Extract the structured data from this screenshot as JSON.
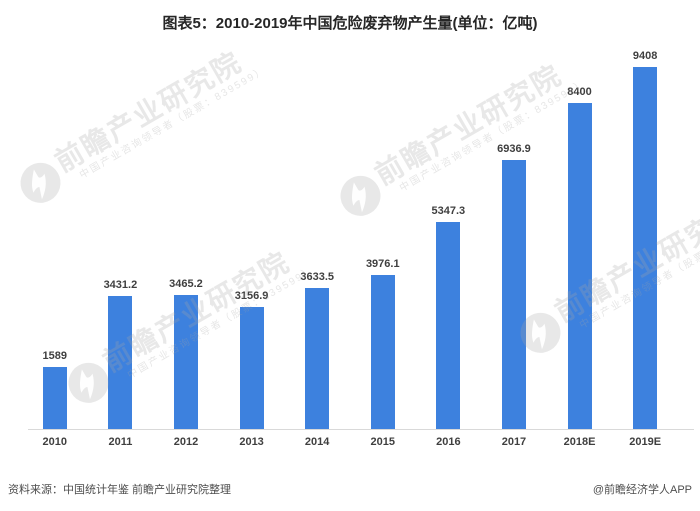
{
  "title": "图表5：2010-2019年中国危险废弃物产生量(单位：亿吨)",
  "chart_data": {
    "type": "bar",
    "title": "图表5：2010-2019年中国危险废弃物产生量(单位：亿吨)",
    "unit": "亿吨",
    "categories": [
      "2010",
      "2011",
      "2012",
      "2013",
      "2014",
      "2015",
      "2016",
      "2017",
      "2018E",
      "2019E"
    ],
    "values": [
      1589,
      3431.2,
      3465.2,
      3156.9,
      3633.5,
      3976.1,
      5347.3,
      6936.9,
      8400,
      9408
    ],
    "value_labels": [
      "1589",
      "3431.2",
      "3465.2",
      "3156.9",
      "3633.5",
      "3976.1",
      "5347.3",
      "6936.9",
      "8400",
      "9408"
    ],
    "xlabel": "",
    "ylabel": "",
    "ylim": [
      0,
      9800
    ],
    "grid": false,
    "legend": false,
    "bar_color": "#3d81de"
  },
  "watermark": {
    "brand": "前瞻产业研究院",
    "tagline": "中国产业咨询领导者（股票：839599）"
  },
  "footer": {
    "source": "资料来源：中国统计年鉴 前瞻产业研究院整理",
    "credit": "@前瞻经济学人APP"
  },
  "colors": {
    "bar": "#3d81de",
    "axis_line": "#d9d9d9",
    "label": "#3f3f3f",
    "title": "#262626",
    "footer_text": "#4d4d4d",
    "watermark": "#ececec"
  }
}
